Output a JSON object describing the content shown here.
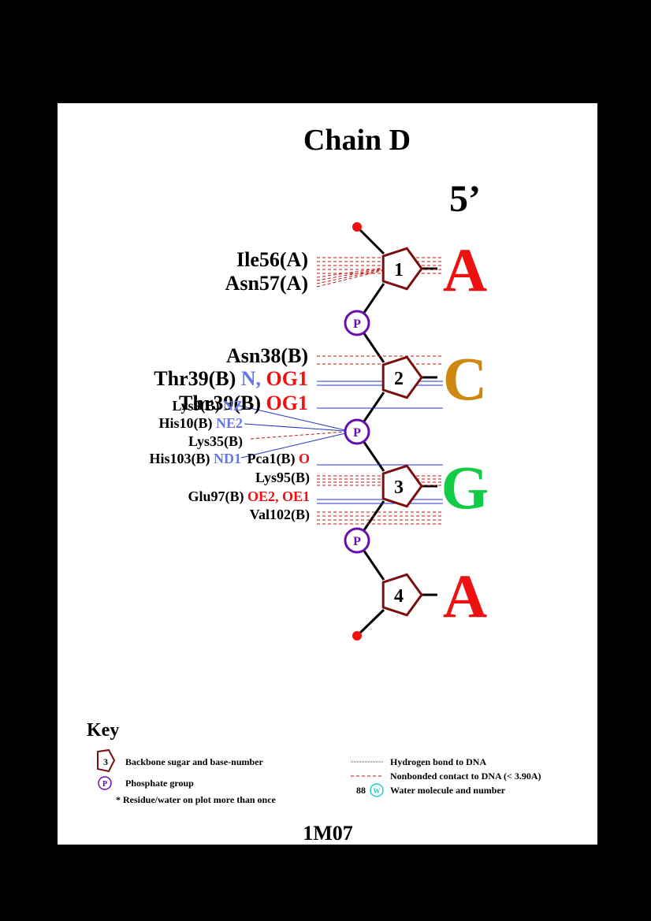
{
  "title": "Chain D",
  "end_label": "5’",
  "pdb_id": "1M07",
  "bases": [
    {
      "number": "1",
      "letter": "A",
      "color": "#ee1111"
    },
    {
      "number": "2",
      "letter": "C",
      "color": "#cc8811"
    },
    {
      "number": "3",
      "letter": "G",
      "color": "#11cc44"
    },
    {
      "number": "4",
      "letter": "A",
      "color": "#ee1111"
    }
  ],
  "phosphate_label": "P",
  "residues": {
    "ile56": "Ile56(A)",
    "asn57": "Asn57(A)",
    "asn38": "Asn38(B)",
    "thr39a": {
      "res": "Thr39(B)",
      "atom1": "N,",
      "atom2": "OG1"
    },
    "thr39b": {
      "res": "Thr39(B)",
      "atom": "OG1"
    },
    "lys9": {
      "res": "Lys9(B)",
      "atom": "NZ"
    },
    "his10": {
      "res": "His10(B)",
      "atom": "NE2"
    },
    "lys35": "Lys35(B)",
    "his103": {
      "res": "His103(B)",
      "atom": "ND1"
    },
    "pca1": {
      "res": "Pca1(B)",
      "atom": "O"
    },
    "lys95": "Lys95(B)",
    "glu97": {
      "res": "Glu97(B)",
      "atom": "OE2, OE1"
    },
    "val102": "Val102(B)"
  },
  "colors": {
    "hbond": "#2233cc",
    "nonbonded": "#cc1111",
    "sugar": "#7a0f0f",
    "phosphate": "#6a0dad",
    "donor_atom": "#6677ee",
    "acceptor_atom": "#ee1111",
    "water": "#22cccc"
  },
  "key": {
    "heading": "Key",
    "sugar_number": "3",
    "sugar_text": "Backbone sugar and base-number",
    "phosphate_symbol": "P",
    "phosphate_text": "Phosphate group",
    "repeat_text": "* Residue/water on plot more than once",
    "hbond_text": "Hydrogen bond to DNA",
    "nonbonded_text": "Nonbonded contact to DNA (< 3.90A)",
    "water_number": "88",
    "water_symbol": "W",
    "water_text": "Water molecule and number"
  }
}
